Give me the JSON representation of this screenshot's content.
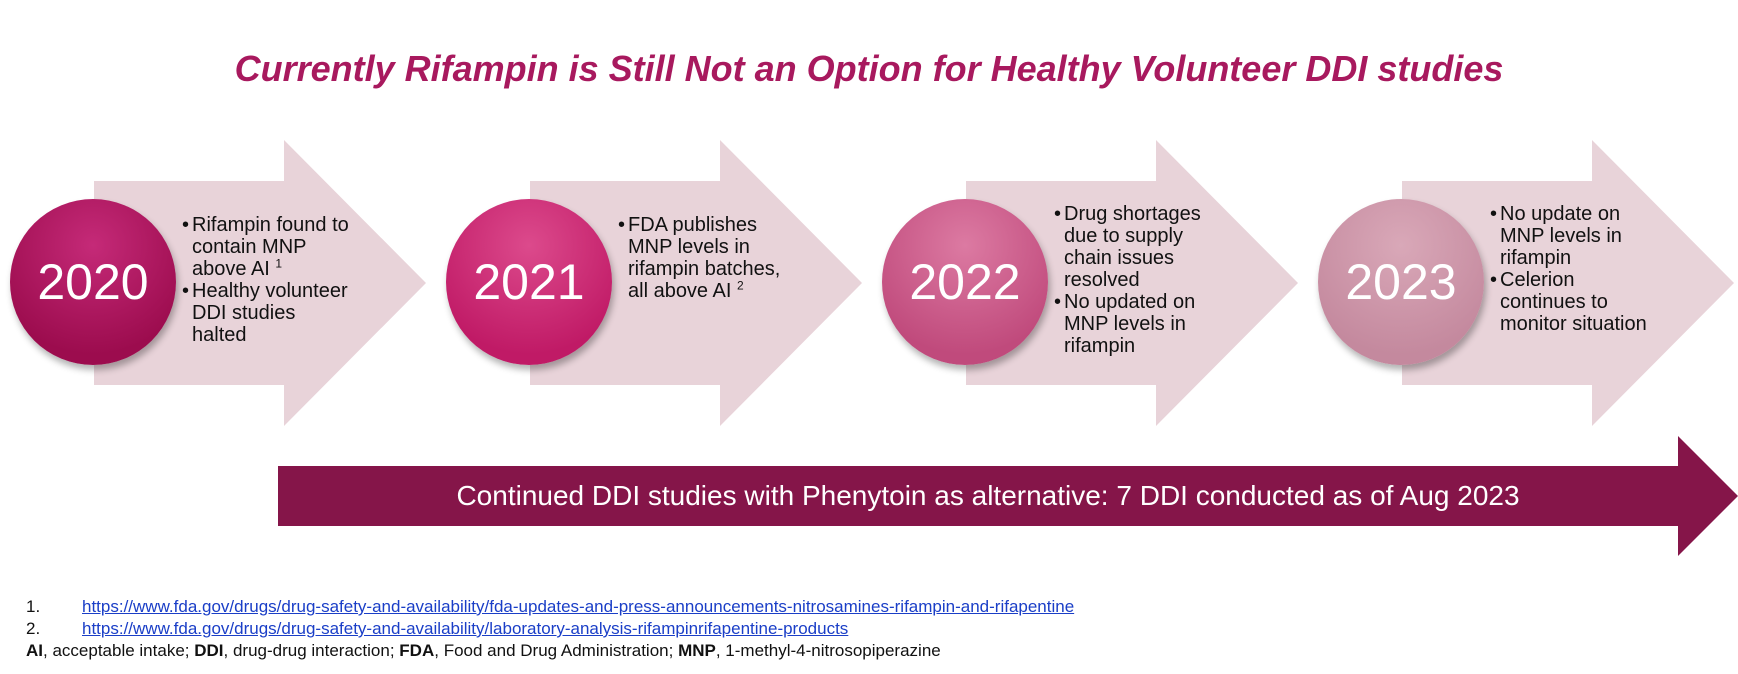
{
  "title": "Currently Rifampin is Still Not an Option for Healthy Volunteer DDI studies",
  "colors": {
    "title": "#a8195e",
    "arrow_fill": "#e8d3d9",
    "bottom_arrow": "#851549",
    "link": "#1a3ec7"
  },
  "stages": [
    {
      "year": "2020",
      "color_top": "#c52a78",
      "color_bottom": "#9c0c4e",
      "bullets": [
        {
          "text": "Rifampin found to contain MNP above AI",
          "sup": "1"
        },
        {
          "text": "Healthy volunteer DDI studies halted",
          "sup": ""
        }
      ]
    },
    {
      "year": "2021",
      "color_top": "#dc4a8c",
      "color_bottom": "#c01a66",
      "bullets": [
        {
          "text": "FDA publishes MNP levels in rifampin batches, all above AI",
          "sup": "2"
        }
      ]
    },
    {
      "year": "2022",
      "color_top": "#dc7aa2",
      "color_bottom": "#c04a7c",
      "bullets": [
        {
          "text": "Drug shortages due to supply chain issues resolved",
          "sup": ""
        },
        {
          "text": "No updated on MNP levels in rifampin",
          "sup": ""
        }
      ]
    },
    {
      "year": "2023",
      "color_top": "#d9a8b8",
      "color_bottom": "#c4899e",
      "bullets": [
        {
          "text": "No update on MNP levels in rifampin",
          "sup": ""
        },
        {
          "text": "Celerion continues to monitor situation",
          "sup": ""
        }
      ]
    }
  ],
  "bottom_banner": "Continued DDI studies with Phenytoin as alternative: 7 DDI conducted as of Aug 2023",
  "references": [
    {
      "num": "1.",
      "url": "https://www.fda.gov/drugs/drug-safety-and-availability/fda-updates-and-press-announcements-nitrosamines-rifampin-and-rifapentine"
    },
    {
      "num": "2.",
      "url": "https://www.fda.gov/drugs/drug-safety-and-availability/laboratory-analysis-rifampinrifapentine-products"
    }
  ],
  "abbreviations": [
    {
      "term": "AI",
      "def": "acceptable intake"
    },
    {
      "term": "DDI",
      "def": "drug-drug interaction"
    },
    {
      "term": "FDA",
      "def": "Food and Drug Administration"
    },
    {
      "term": "MNP",
      "def": "1-methyl-4-nitrosopiperazine"
    }
  ]
}
